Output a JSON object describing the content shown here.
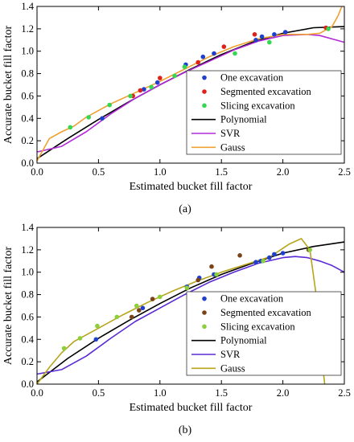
{
  "chart_data": [
    {
      "type": "scatter",
      "panel_label": "(a)",
      "xlabel": "Estimated bucket fill factor",
      "ylabel": "Accurate bucket fill factor",
      "xlim": [
        0.0,
        2.5
      ],
      "ylim": [
        0.0,
        1.4
      ],
      "xticks": [
        "0.0",
        "0.5",
        "1.0",
        "1.5",
        "2.0",
        "2.5"
      ],
      "yticks": [
        "0.0",
        "0.2",
        "0.4",
        "0.6",
        "0.8",
        "1.0",
        "1.2",
        "1.4"
      ],
      "grid": false,
      "legend_position": "lower-right",
      "series": [
        {
          "name": "One excavation",
          "kind": "points",
          "color": "#1f3fcf",
          "x": [
            0.53,
            0.87,
            0.98,
            1.21,
            1.35,
            1.44,
            1.78,
            1.83,
            1.93,
            2.02
          ],
          "y": [
            0.4,
            0.66,
            0.72,
            0.88,
            0.95,
            0.98,
            1.1,
            1.13,
            1.15,
            1.17
          ]
        },
        {
          "name": "Segmented excavation",
          "kind": "points",
          "color": "#e0201b",
          "x": [
            0.78,
            0.84,
            1.0,
            1.31,
            1.52,
            1.77,
            2.35
          ],
          "y": [
            0.6,
            0.65,
            0.76,
            0.9,
            1.04,
            1.15,
            1.21
          ]
        },
        {
          "name": "Slicing excavation",
          "kind": "points",
          "color": "#35d650",
          "x": [
            0.27,
            0.42,
            0.59,
            0.76,
            0.93,
            1.12,
            1.2,
            1.61,
            1.89,
            2.37
          ],
          "y": [
            0.32,
            0.41,
            0.52,
            0.6,
            0.68,
            0.78,
            0.86,
            0.98,
            1.08,
            1.2
          ]
        },
        {
          "name": "Polynomial",
          "kind": "line",
          "color": "#000000",
          "x": [
            0.0,
            0.25,
            0.5,
            0.75,
            1.0,
            1.25,
            1.5,
            1.75,
            2.0,
            2.25,
            2.5
          ],
          "y": [
            0.04,
            0.22,
            0.39,
            0.55,
            0.7,
            0.84,
            0.97,
            1.08,
            1.16,
            1.21,
            1.22
          ]
        },
        {
          "name": "SVR",
          "kind": "line",
          "color": "#b22bd9",
          "x": [
            0.0,
            0.2,
            0.4,
            0.6,
            0.8,
            1.0,
            1.2,
            1.4,
            1.6,
            1.8,
            2.0,
            2.2,
            2.3,
            2.4,
            2.5
          ],
          "y": [
            0.1,
            0.15,
            0.28,
            0.44,
            0.58,
            0.7,
            0.81,
            0.91,
            1.01,
            1.09,
            1.14,
            1.15,
            1.14,
            1.11,
            1.08
          ]
        },
        {
          "name": "Gauss",
          "kind": "line",
          "color": "#f0a030",
          "x": [
            0.0,
            0.1,
            0.2,
            0.3,
            0.4,
            0.6,
            0.8,
            1.0,
            1.2,
            1.4,
            1.6,
            1.8,
            2.0,
            2.2,
            2.3,
            2.4,
            2.45,
            2.48
          ],
          "y": [
            0.02,
            0.22,
            0.28,
            0.33,
            0.41,
            0.53,
            0.63,
            0.73,
            0.84,
            0.95,
            1.04,
            1.11,
            1.15,
            1.15,
            1.16,
            1.22,
            1.32,
            1.4
          ]
        }
      ]
    },
    {
      "type": "scatter",
      "panel_label": "(b)",
      "xlabel": "Estimated bucket fill factor",
      "ylabel": "Accurate bucket fill factor",
      "xlim": [
        0.0,
        2.5
      ],
      "ylim": [
        0.0,
        1.4
      ],
      "xticks": [
        "0.0",
        "0.5",
        "1.0",
        "1.5",
        "2.0",
        "2.5"
      ],
      "yticks": [
        "0.0",
        "0.2",
        "0.4",
        "0.6",
        "0.8",
        "1.0",
        "1.2",
        "1.4"
      ],
      "grid": false,
      "legend_position": "lower-right",
      "series": [
        {
          "name": "One excavation",
          "kind": "points",
          "color": "#1f3fcf",
          "x": [
            0.48,
            0.86,
            1.22,
            1.32,
            1.44,
            1.78,
            1.82,
            1.89,
            1.93,
            2.0
          ],
          "y": [
            0.4,
            0.68,
            0.87,
            0.95,
            0.98,
            1.09,
            1.1,
            1.13,
            1.16,
            1.17
          ]
        },
        {
          "name": "Segmented excavation",
          "kind": "points",
          "color": "#7a4418",
          "x": [
            0.77,
            0.83,
            0.94,
            1.31,
            1.42,
            1.65,
            2.21
          ],
          "y": [
            0.6,
            0.66,
            0.76,
            0.93,
            1.05,
            1.15,
            1.2
          ]
        },
        {
          "name": "Slicing excavation",
          "kind": "points",
          "color": "#8ccf3a",
          "x": [
            0.22,
            0.35,
            0.49,
            0.65,
            0.81,
            1.0,
            1.22,
            1.46,
            1.84,
            2.22
          ],
          "y": [
            0.32,
            0.41,
            0.52,
            0.6,
            0.7,
            0.78,
            0.86,
            0.98,
            1.1,
            1.2
          ]
        },
        {
          "name": "Polynomial",
          "kind": "line",
          "color": "#000000",
          "x": [
            0.0,
            0.25,
            0.5,
            0.75,
            1.0,
            1.25,
            1.5,
            1.75,
            2.0,
            2.25,
            2.5
          ],
          "y": [
            0.02,
            0.23,
            0.41,
            0.57,
            0.72,
            0.86,
            0.98,
            1.08,
            1.17,
            1.23,
            1.27
          ]
        },
        {
          "name": "SVR",
          "kind": "line",
          "color": "#5b2ad4",
          "x": [
            0.0,
            0.2,
            0.4,
            0.6,
            0.8,
            1.0,
            1.2,
            1.4,
            1.6,
            1.8,
            2.0,
            2.1,
            2.2,
            2.3,
            2.4,
            2.5
          ],
          "y": [
            0.09,
            0.13,
            0.25,
            0.41,
            0.56,
            0.68,
            0.8,
            0.91,
            1.0,
            1.08,
            1.13,
            1.14,
            1.13,
            1.1,
            1.06,
            1.0
          ]
        },
        {
          "name": "Gauss",
          "kind": "line",
          "color": "#b8a51c",
          "x": [
            0.0,
            0.1,
            0.2,
            0.3,
            0.5,
            0.7,
            0.9,
            1.1,
            1.3,
            1.5,
            1.7,
            1.9,
            2.05,
            2.15,
            2.22,
            2.27,
            2.31,
            2.34
          ],
          "y": [
            0.0,
            0.15,
            0.28,
            0.38,
            0.5,
            0.62,
            0.73,
            0.83,
            0.92,
            1.0,
            1.07,
            1.14,
            1.25,
            1.3,
            1.2,
            0.8,
            0.3,
            0.0
          ]
        }
      ]
    }
  ]
}
